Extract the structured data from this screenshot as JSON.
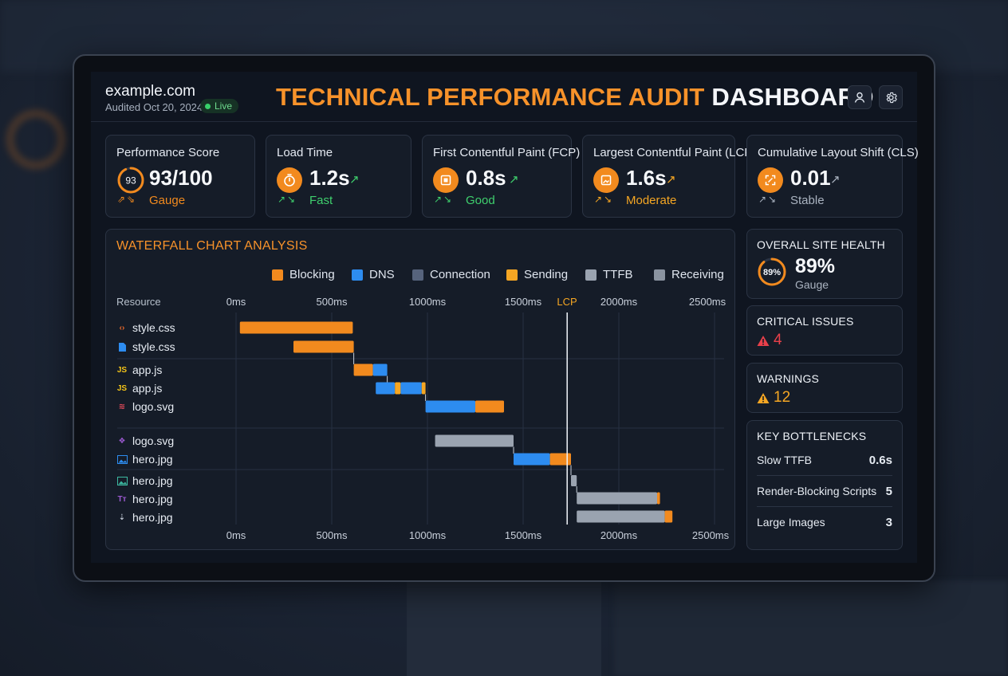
{
  "header": {
    "site": "example.com",
    "audited": "Audited Oct 20, 2024",
    "status": "Live",
    "title_accent": "TECHNICAL PERFORMANCE AUDIT",
    "title_rest": "DASHBOARD",
    "user_icon": "user-icon",
    "settings_icon": "gear-icon"
  },
  "kpis": [
    {
      "label": "Performance Score",
      "value": "93/100",
      "gauge_value": "93",
      "sub": "Gauge",
      "sub_color": "#f28a1e"
    },
    {
      "label": "Load Time",
      "value": "1.2s",
      "sub": "Fast",
      "sub_color": "#3fcf6d",
      "icon": "stopwatch-icon"
    },
    {
      "label": "First Contentful Paint (FCP)",
      "value": "0.8s",
      "sub": "Good",
      "sub_color": "#3fcf6d",
      "icon": "paint-icon"
    },
    {
      "label": "Largest Contentful Paint (LCP)",
      "value": "1.6s",
      "sub": "Moderate",
      "sub_color": "#f5a623",
      "icon": "image-paint-icon"
    },
    {
      "label": "Cumulative Layout Shift (CLS)",
      "value": "0.01",
      "sub": "Stable",
      "sub_color": "#aab3c0",
      "icon": "layout-shift-icon"
    }
  ],
  "waterfall": {
    "title": "WATERFALL CHART ANALYSIS",
    "resource_header": "Resource",
    "lcp_label": "LCP",
    "legend": [
      {
        "name": "Blocking",
        "color": "#f28a1e"
      },
      {
        "name": "DNS",
        "color": "#2d8cf0"
      },
      {
        "name": "Connection",
        "color": "#56637c"
      },
      {
        "name": "Sending",
        "color": "#f5a623"
      },
      {
        "name": "TTFB",
        "color": "#9aa3b0"
      },
      {
        "name": "Receiving",
        "color": "#8a93a0"
      }
    ]
  },
  "chart_data": {
    "type": "waterfall",
    "x_unit": "ms",
    "xlim": [
      0,
      2500
    ],
    "x_ticks": [
      "0ms",
      "500ms",
      "1000ms",
      "1500ms",
      "2000ms",
      "2500ms"
    ],
    "lcp_ms": 1730,
    "resources": [
      {
        "name": "style.css",
        "icon": "code-icon",
        "icon_color": "#f06a2a",
        "segments": [
          {
            "phase": "Blocking",
            "start": 20,
            "end": 610
          }
        ]
      },
      {
        "name": "style.css",
        "icon": "file-icon",
        "icon_color": "#2d8cf0",
        "segments": [
          {
            "phase": "Blocking",
            "start": 300,
            "end": 615
          }
        ]
      },
      {
        "name": "app.js",
        "icon": "js-icon",
        "icon_color": "#f5c518",
        "segments": [
          {
            "phase": "Blocking",
            "start": 615,
            "end": 715
          },
          {
            "phase": "DNS",
            "start": 715,
            "end": 790
          }
        ]
      },
      {
        "name": "app.js",
        "icon": "js-icon",
        "icon_color": "#f5c518",
        "segments": [
          {
            "phase": "DNS",
            "start": 730,
            "end": 830
          },
          {
            "phase": "Sending",
            "start": 830,
            "end": 860
          },
          {
            "phase": "DNS",
            "start": 860,
            "end": 970
          },
          {
            "phase": "Sending",
            "start": 970,
            "end": 990
          }
        ]
      },
      {
        "name": "logo.svg",
        "icon": "svg-icon",
        "icon_color": "#e04a5a",
        "segments": [
          {
            "phase": "DNS",
            "start": 990,
            "end": 1250
          },
          {
            "phase": "Blocking",
            "start": 1250,
            "end": 1400
          }
        ]
      },
      {
        "name": "logo.svg",
        "icon": "vector-icon",
        "icon_color": "#9b59d0",
        "segments": [
          {
            "phase": "TTFB",
            "start": 1040,
            "end": 1450
          }
        ]
      },
      {
        "name": "hero.jpg",
        "icon": "image-icon",
        "icon_color": "#2d8cf0",
        "segments": [
          {
            "phase": "DNS",
            "start": 1450,
            "end": 1640
          },
          {
            "phase": "Blocking",
            "start": 1640,
            "end": 1750
          }
        ]
      },
      {
        "name": "hero.jpg",
        "icon": "photo-icon",
        "icon_color": "#3cb8a0",
        "segments": [
          {
            "phase": "TTFB",
            "start": 1750,
            "end": 1780
          }
        ]
      },
      {
        "name": "hero.jpg",
        "icon": "text-icon",
        "icon_color": "#9b59d0",
        "segments": [
          {
            "phase": "TTFB",
            "start": 1780,
            "end": 2200
          },
          {
            "phase": "Blocking",
            "start": 2200,
            "end": 2215
          }
        ]
      },
      {
        "name": "hero.jpg",
        "icon": "download-icon",
        "icon_color": "#b8c0cc",
        "segments": [
          {
            "phase": "TTFB",
            "start": 1780,
            "end": 2240
          },
          {
            "phase": "Blocking",
            "start": 2240,
            "end": 2280
          }
        ]
      }
    ]
  },
  "health": {
    "title": "OVERALL SITE HEALTH",
    "value": "89%",
    "ring_value": 89,
    "ring_label": "89%",
    "sub": "Gauge"
  },
  "critical": {
    "title": "CRITICAL ISSUES",
    "count": "4",
    "color": "#e8404a"
  },
  "warnings": {
    "title": "WARNINGS",
    "count": "12",
    "color": "#f5a623"
  },
  "bottlenecks": {
    "title": "KEY BOTTLENECKS",
    "items": [
      {
        "label": "Slow TTFB",
        "value": "0.6s"
      },
      {
        "label": "Render-Blocking Scripts",
        "value": "5"
      },
      {
        "label": "Large Images",
        "value": "3"
      }
    ]
  }
}
